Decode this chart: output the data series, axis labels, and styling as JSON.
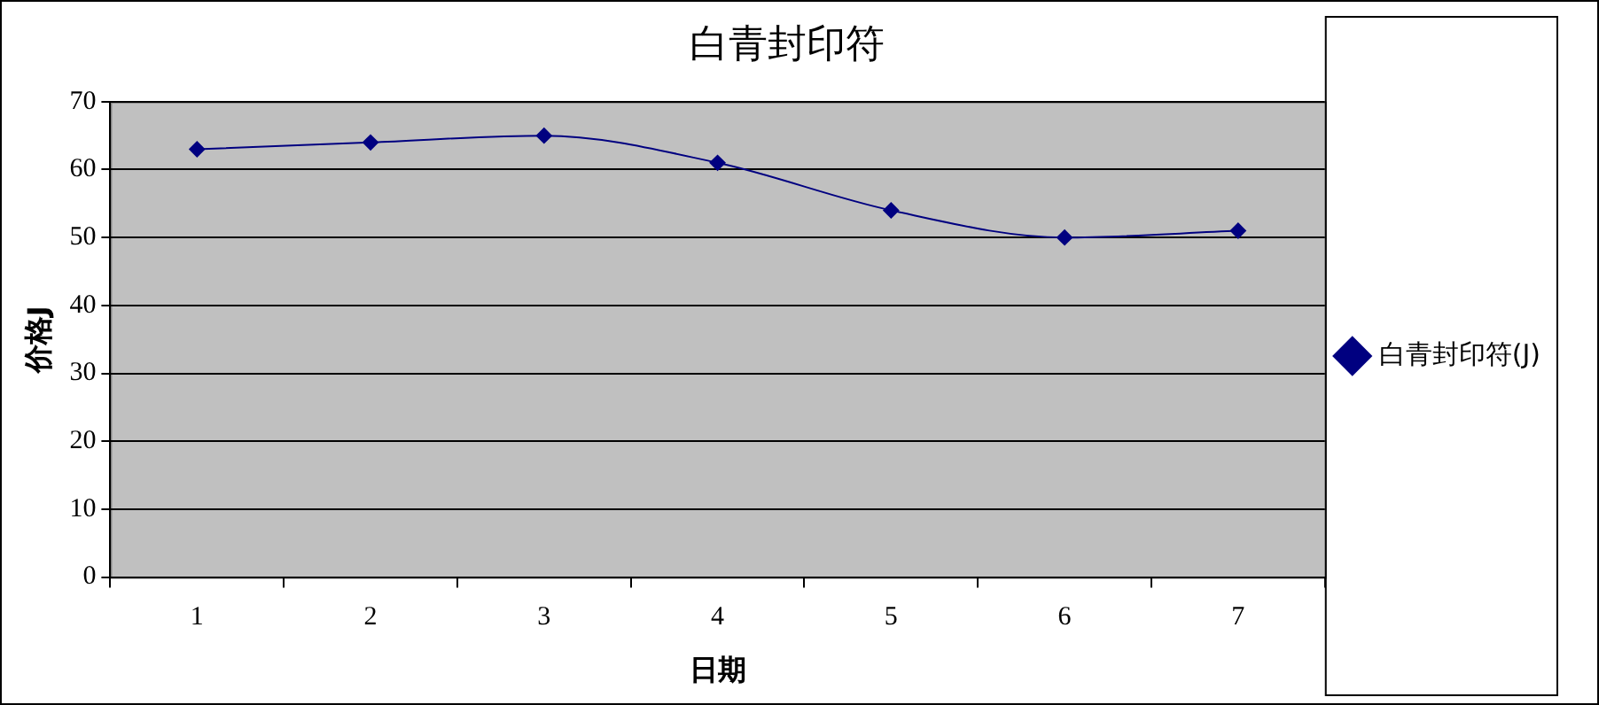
{
  "chart_data": {
    "type": "line",
    "title": "白青封印符",
    "xlabel": "日期",
    "ylabel": "价格J",
    "categories": [
      "1",
      "2",
      "3",
      "4",
      "5",
      "6",
      "7"
    ],
    "series": [
      {
        "name": "白青封印符(J)",
        "color": "#000080",
        "values": [
          63,
          64,
          65,
          61,
          54,
          50,
          51
        ]
      }
    ],
    "ylim": [
      0,
      70
    ],
    "yticks": [
      0,
      10,
      20,
      30,
      40,
      50,
      60,
      70
    ],
    "grid": "y",
    "legend": "right",
    "marker": "diamond",
    "line_style": "solid"
  }
}
